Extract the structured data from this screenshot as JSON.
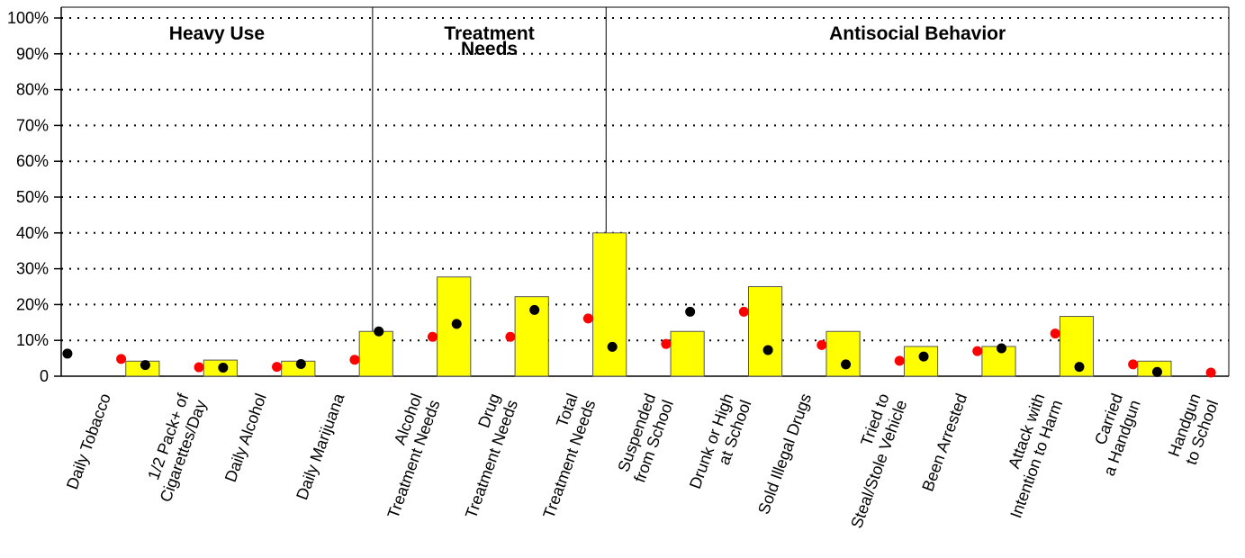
{
  "chart_data": {
    "type": "bar_dot",
    "groups": [
      {
        "label": [
          "Heavy Use"
        ],
        "start": 0,
        "end": 3
      },
      {
        "label": [
          "Treatment",
          "Needs"
        ],
        "start": 4,
        "end": 6
      },
      {
        "label": [
          "Antisocial Behavior"
        ],
        "start": 7,
        "end": 14
      }
    ],
    "categories": [
      [
        "Daily Tobacco"
      ],
      [
        "1/2 Pack+ of",
        "Cigarettes/Day"
      ],
      [
        "Daily Alcohol"
      ],
      [
        "Daily Marijuana"
      ],
      [
        "Alcohol",
        "Treatment Needs"
      ],
      [
        "Drug",
        "Treatment Needs"
      ],
      [
        "Total",
        "Treatment Needs"
      ],
      [
        "Suspended",
        "from School"
      ],
      [
        "Drunk or High",
        "at School"
      ],
      [
        "Sold Illegal Drugs"
      ],
      [
        "Tried to",
        "Steal/Stole Vehicle"
      ],
      [
        "Been Arrested"
      ],
      [
        "Attack with",
        "Intention to Harm"
      ],
      [
        "Carried",
        "a Handgun"
      ],
      [
        "Handgun",
        "to School"
      ]
    ],
    "series": [
      {
        "kind": "bar",
        "color": "#ffff00",
        "values": [
          4.2,
          4.5,
          4.2,
          12.5,
          27.7,
          22.2,
          40,
          12.5,
          25,
          12.5,
          8.3,
          8.3,
          16.7,
          4.2,
          0
        ]
      },
      {
        "kind": "dot",
        "color": "#000000",
        "values": [
          6.3,
          3.1,
          2.4,
          3.4,
          12.5,
          14.6,
          18.5,
          8.2,
          18,
          7.3,
          3.3,
          5.5,
          7.8,
          2.6,
          1.2
        ]
      },
      {
        "kind": "dot",
        "color": "#ff0000",
        "values": [
          4.8,
          2.5,
          2.6,
          4.6,
          11,
          11,
          16.1,
          9,
          18,
          8.7,
          4.3,
          7,
          11.9,
          3.3,
          1
        ]
      }
    ],
    "ylim": [
      0,
      100
    ],
    "yticks": [
      0,
      {
        "value": 10,
        "label": "10%"
      },
      {
        "value": 20,
        "label": "20%"
      },
      {
        "value": 30,
        "label": "30%"
      },
      {
        "value": 40,
        "label": "40%"
      },
      {
        "value": 50,
        "label": "50%"
      },
      {
        "value": 60,
        "label": "60%"
      },
      {
        "value": 70,
        "label": "70%"
      },
      {
        "value": 80,
        "label": "80%"
      },
      {
        "value": 90,
        "label": "90%"
      },
      {
        "value": 100,
        "label": "100%"
      }
    ],
    "grid": true
  }
}
